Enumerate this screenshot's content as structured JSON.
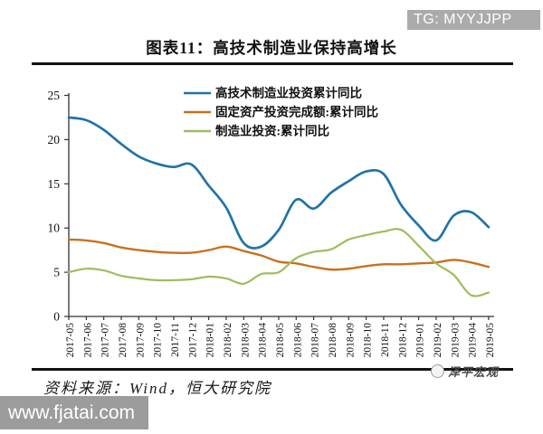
{
  "header": {
    "badge": "TG: MYYJJPP",
    "title": "图表11：高技术制造业保持高增长"
  },
  "footer": {
    "source": "资料来源：Wind，恒大研究院",
    "watermark": "泽平宏观",
    "site_banner": "www.fjatai.com"
  },
  "colors": {
    "badge_bg": "#ABABAB",
    "banner_bg": "#9C9C9C",
    "rule": "#121212",
    "axis": "#333333"
  },
  "chart_data": {
    "type": "line",
    "title": "图表11：高技术制造业保持高增长",
    "xlabel": "",
    "ylabel": "",
    "ylim": [
      0,
      25
    ],
    "yticks": [
      0,
      5,
      10,
      15,
      20,
      25
    ],
    "grid": false,
    "legend_position": "top-center",
    "categories": [
      "2017-05",
      "2017-06",
      "2017-07",
      "2017-08",
      "2017-09",
      "2017-10",
      "2017-11",
      "2017-12",
      "2018-01",
      "2018-02",
      "2018-03",
      "2018-04",
      "2018-05",
      "2018-06",
      "2018-07",
      "2018-08",
      "2018-09",
      "2018-10",
      "2018-11",
      "2018-12",
      "2019-01",
      "2019-02",
      "2019-03",
      "2019-04",
      "2019-05"
    ],
    "series": [
      {
        "name": "高技术制造业投资累计同比",
        "color": "#2273A6",
        "stroke_width": 2.7,
        "values": [
          22.5,
          22.2,
          21.1,
          19.5,
          18.1,
          17.3,
          16.9,
          17.2,
          14.8,
          12.3,
          8.3,
          7.9,
          9.8,
          13.2,
          12.2,
          14.0,
          15.3,
          16.4,
          16.1,
          12.6,
          10.3,
          8.6,
          11.4,
          11.8,
          10.1
        ]
      },
      {
        "name": "固定资产投资完成额:累计同比",
        "color": "#C9701E",
        "stroke_width": 2.4,
        "values": [
          8.7,
          8.6,
          8.3,
          7.8,
          7.5,
          7.3,
          7.2,
          7.2,
          7.5,
          7.9,
          7.4,
          6.9,
          6.2,
          6.0,
          5.6,
          5.3,
          5.4,
          5.7,
          5.9,
          5.9,
          6.0,
          6.1,
          6.4,
          6.1,
          5.6
        ]
      },
      {
        "name": "制造业投资:累计同比",
        "color": "#9FBD60",
        "stroke_width": 2.2,
        "values": [
          5.0,
          5.4,
          5.2,
          4.6,
          4.3,
          4.1,
          4.1,
          4.2,
          4.5,
          4.3,
          3.7,
          4.8,
          5.0,
          6.6,
          7.3,
          7.6,
          8.7,
          9.2,
          9.6,
          9.8,
          8.0,
          6.0,
          4.7,
          2.4,
          2.7
        ]
      }
    ]
  }
}
